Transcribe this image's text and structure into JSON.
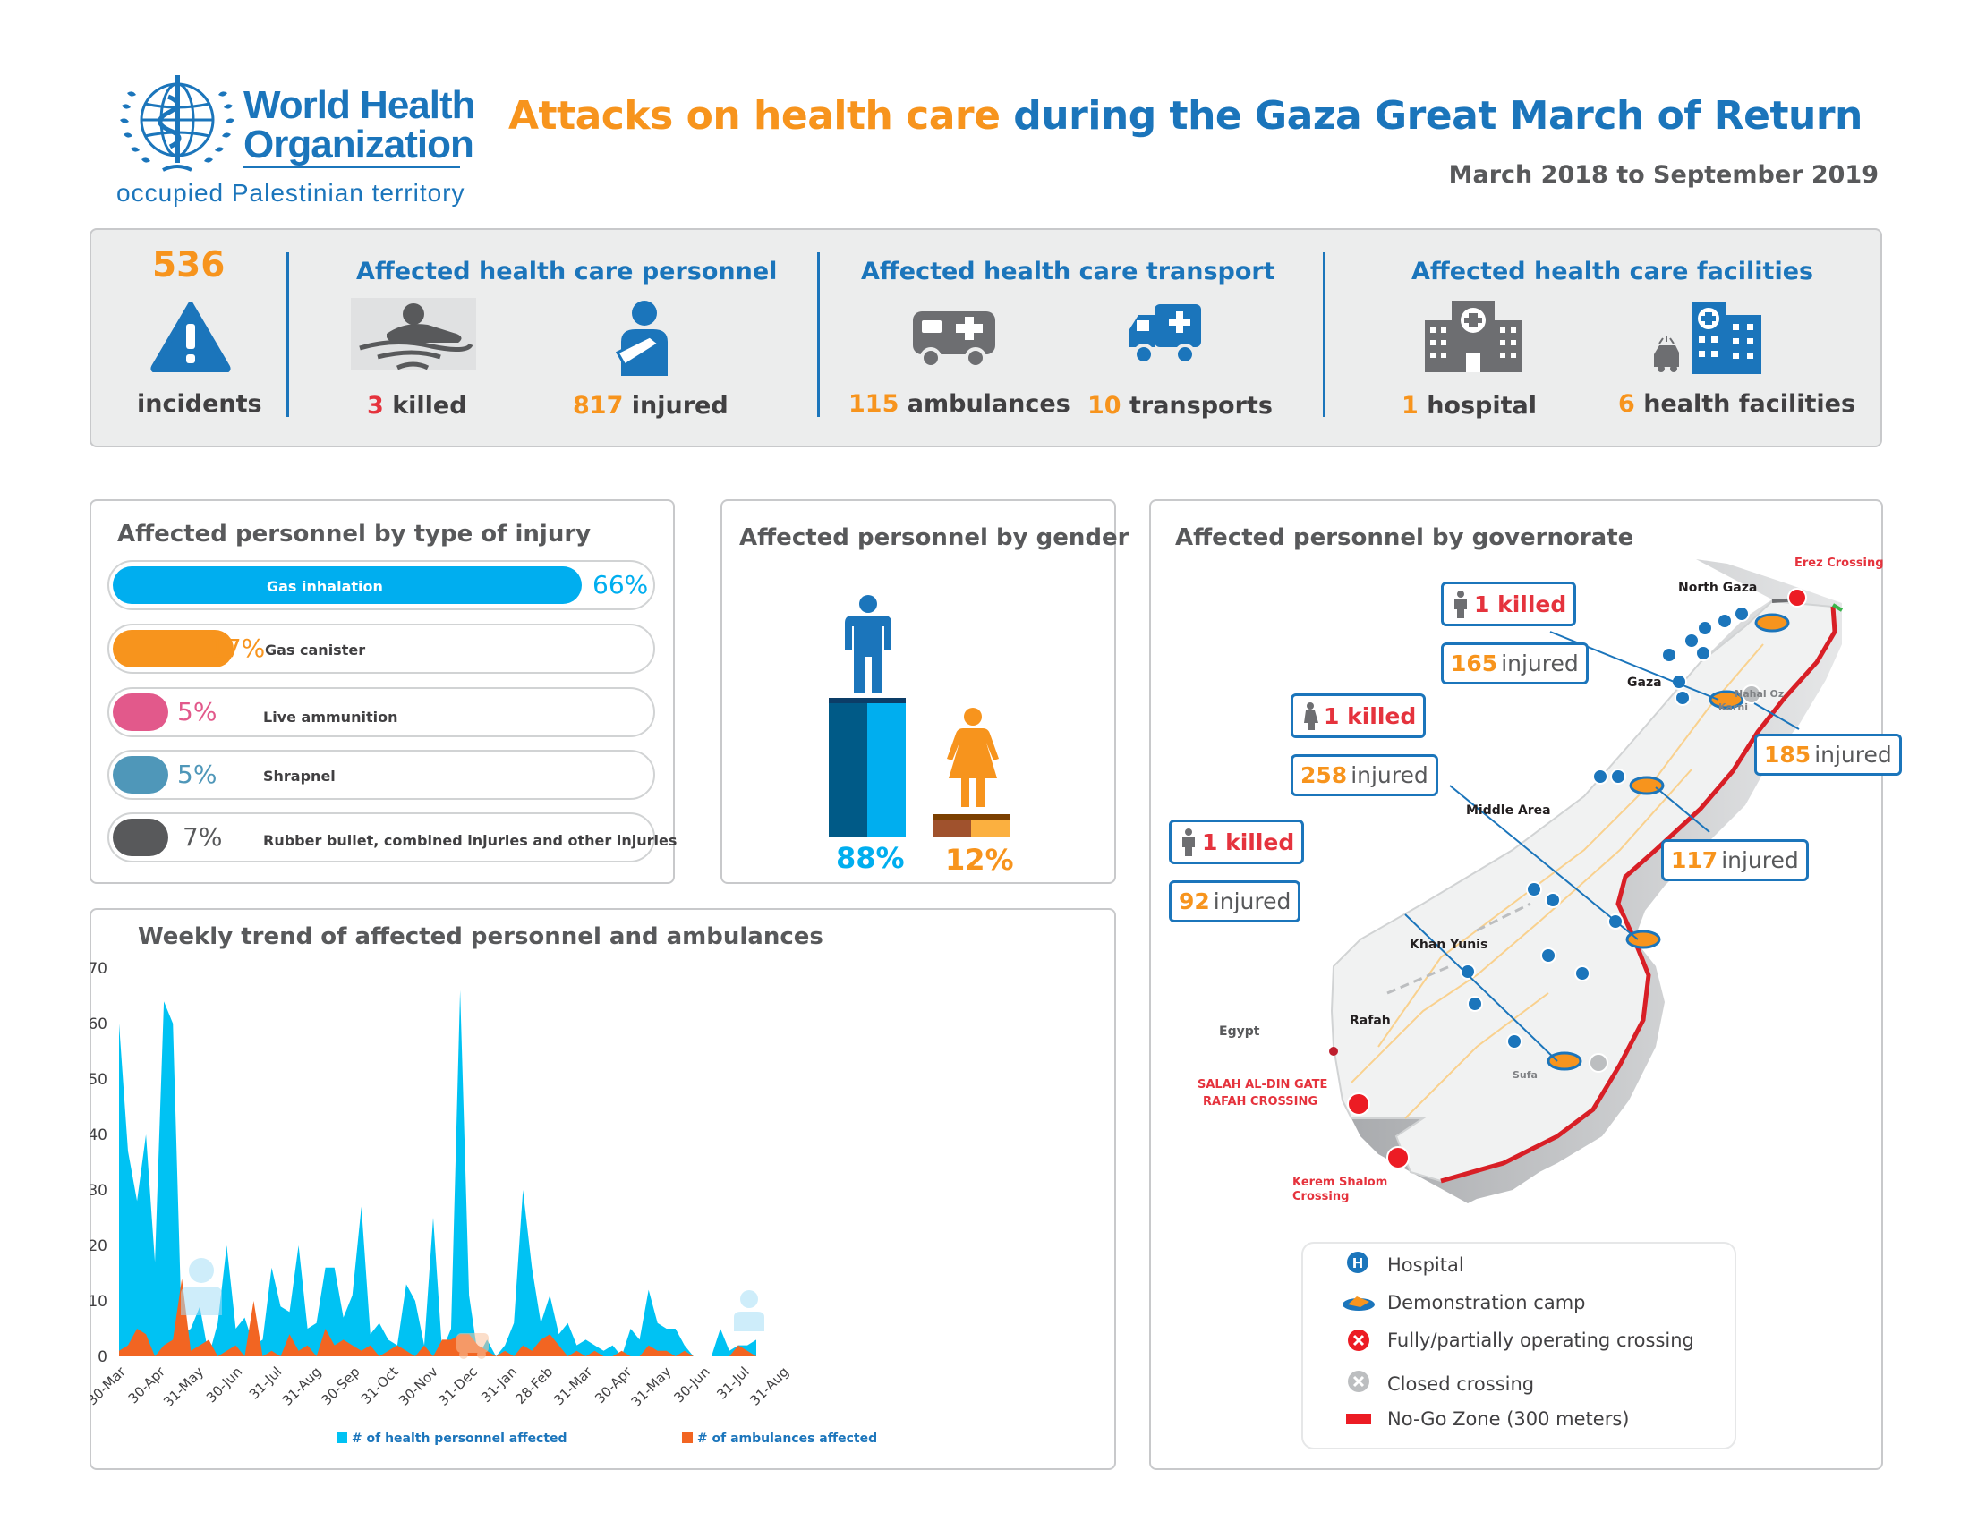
{
  "header": {
    "org_line1": "World Health",
    "org_line2": "Organization",
    "org_sub": "occupied Palestinian territory",
    "title_part1": "Attacks on health care",
    "title_part2": "during the Gaza Great March of Return",
    "date_range": "March 2018 to September 2019"
  },
  "summary": {
    "incidents_num": "536",
    "incidents_label": "incidents",
    "personnel_heading": "Affected health care personnel",
    "killed_num": "3",
    "killed_label": "killed",
    "injured_num": "817",
    "injured_label": "injured",
    "transport_heading": "Affected health care transport",
    "ambulances_num": "115",
    "ambulances_label": "ambulances",
    "transports_num": "10",
    "transports_label": "transports",
    "facilities_heading": "Affected health care facilities",
    "hospital_num": "1",
    "hospital_label": "hospital",
    "facilities_num": "6",
    "facilities_label": "health facilities"
  },
  "injury": {
    "title": "Affected personnel by type of injury",
    "items": [
      {
        "label": "Gas inhalation",
        "pct": "66%",
        "value": 66,
        "color": "#00aeef"
      },
      {
        "label": "Gas canister",
        "pct": "17%",
        "value": 17,
        "color": "#f7941d"
      },
      {
        "label": "Live ammunition",
        "pct": "5%",
        "value": 5,
        "color": "#e2598b"
      },
      {
        "label": "Shrapnel",
        "pct": "5%",
        "value": 5,
        "color": "#4f97b9"
      },
      {
        "label": "Rubber bullet, combined injuries and other injuries",
        "pct": "7%",
        "value": 7,
        "color": "#58595b"
      }
    ]
  },
  "gender": {
    "title": "Affected personnel by gender",
    "male_pct": "88%",
    "female_pct": "12%",
    "male_value": 88,
    "female_value": 12
  },
  "governorate": {
    "title": "Affected personnel by governorate",
    "callouts": {
      "north_killed": "1 killed",
      "north_injured_num": "165",
      "gaza_killed": "1 killed",
      "gaza_injured_num": "258",
      "khan_killed": "1 killed",
      "khan_injured_num": "92",
      "middle_injured_num": "185",
      "rafah_injured_num": "117",
      "injured_word": "injured"
    },
    "places": {
      "north_gaza": "North Gaza",
      "gaza": "Gaza",
      "middle_area": "Middle Area",
      "khan_yunis": "Khan Yunis",
      "rafah": "Rafah",
      "egypt": "Egypt",
      "erez": "Erez Crossing",
      "nahal_oz": "Nahal Oz",
      "karni": "Karni",
      "sufa": "Sufa",
      "salah_gate": "SALAH AL-DIN GATE",
      "rafah_crossing": "RAFAH CROSSING",
      "kerem_1": "Kerem Shalom",
      "kerem_2": "Crossing"
    },
    "legend": {
      "hospital": "Hospital",
      "camp": "Demonstration camp",
      "open_crossing": "Fully/partially operating crossing",
      "closed_crossing": "Closed crossing",
      "nogo": "No-Go Zone  (300 meters)"
    }
  },
  "chart_data": {
    "type": "area",
    "title": "Weekly trend of affected personnel and ambulances",
    "xlabel": "",
    "ylabel": "",
    "ylim": [
      0,
      70
    ],
    "yticks": [
      0,
      10,
      20,
      30,
      40,
      50,
      60,
      70
    ],
    "x_tick_labels": [
      "30-Mar",
      "30-Apr",
      "31-May",
      "30-Jun",
      "31-Jul",
      "31-Aug",
      "30-Sep",
      "31-Oct",
      "30-Nov",
      "31-Dec",
      "31-Jan",
      "28-Feb",
      "31-Mar",
      "30-Apr",
      "31-May",
      "30-Jun",
      "31-Jul",
      "31-Aug"
    ],
    "x_tick_weeks": [
      0,
      4.4,
      8.7,
      13,
      17.4,
      21.8,
      26.1,
      30.4,
      34.8,
      39.2,
      43.6,
      47.6,
      52,
      56.4,
      60.8,
      65.1,
      69.5,
      73.9
    ],
    "series": [
      {
        "name": "# of health personnel affected",
        "color": "#00c2f3",
        "values": [
          60,
          37,
          28,
          40,
          17,
          64,
          60,
          4,
          5,
          9,
          0,
          6,
          20,
          5,
          7,
          2,
          3,
          16,
          9,
          8,
          20,
          5,
          6,
          16,
          16,
          7,
          11,
          27,
          4,
          6,
          3,
          2,
          13,
          10,
          2,
          25,
          1,
          5,
          66,
          11,
          0,
          3,
          0,
          2,
          6,
          30,
          16,
          6,
          11,
          4,
          6,
          2,
          3,
          2,
          1,
          2,
          0,
          5,
          3,
          12,
          6,
          5,
          5,
          2,
          0,
          0,
          0,
          5,
          1,
          2,
          2,
          3
        ]
      },
      {
        "name": "# of ambulances affected",
        "color": "#f26522",
        "values": [
          1,
          2,
          5,
          4,
          0,
          2,
          3,
          14,
          1,
          2,
          3,
          0,
          1,
          2,
          0,
          10,
          0,
          1,
          0,
          4,
          1,
          2,
          0,
          5,
          2,
          3,
          2,
          1,
          2,
          0,
          1,
          2,
          1,
          0,
          2,
          0,
          3,
          3,
          4,
          4,
          2,
          1,
          0,
          1,
          0,
          2,
          1,
          3,
          4,
          2,
          0,
          1,
          0,
          1,
          0,
          0,
          1,
          0,
          0,
          2,
          1,
          1,
          0,
          1,
          0,
          0,
          0,
          0,
          0,
          2,
          1,
          0
        ]
      }
    ]
  }
}
